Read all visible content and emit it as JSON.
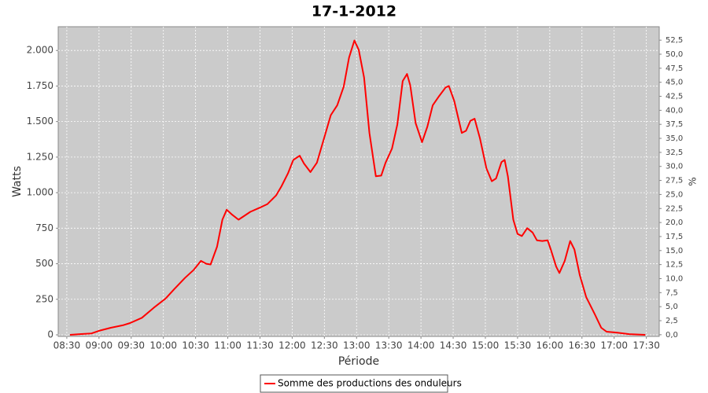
{
  "chart_data": {
    "type": "line",
    "title": "17-1-2012",
    "xlabel": "Période",
    "ylabel": "Watts",
    "y2label": "%",
    "x": [
      "08:33",
      "08:42",
      "08:53",
      "09:00",
      "09:11",
      "09:22",
      "09:29",
      "09:40",
      "09:51",
      "10:02",
      "10:10",
      "10:20",
      "10:28",
      "10:35",
      "10:40",
      "10:44",
      "10:50",
      "10:55",
      "10:59",
      "11:04",
      "11:10",
      "11:15",
      "11:21",
      "11:30",
      "11:37",
      "11:45",
      "11:50",
      "11:56",
      "12:01",
      "12:07",
      "12:11",
      "12:17",
      "12:23",
      "12:29",
      "12:36",
      "12:42",
      "12:48",
      "12:53",
      "12:58",
      "13:02",
      "13:07",
      "13:12",
      "13:18",
      "13:23",
      "13:27",
      "13:33",
      "13:38",
      "13:43",
      "13:47",
      "13:50",
      "13:55",
      "14:01",
      "14:06",
      "14:11",
      "14:17",
      "14:23",
      "14:26",
      "14:31",
      "14:38",
      "14:42",
      "14:46",
      "14:50",
      "14:55",
      "15:01",
      "15:06",
      "15:10",
      "15:15",
      "15:18",
      "15:21",
      "15:26",
      "15:30",
      "15:34",
      "15:39",
      "15:44",
      "15:48",
      "15:53",
      "15:58",
      "16:01",
      "16:06",
      "16:09",
      "16:14",
      "16:19",
      "16:23",
      "16:28",
      "16:34",
      "16:42",
      "16:48",
      "16:53",
      "17:03",
      "17:14",
      "17:29"
    ],
    "series": [
      {
        "name": "Somme des productions des onduleurs",
        "color": "#ff0000",
        "values": [
          0,
          5,
          10,
          28,
          50,
          67,
          83,
          120,
          190,
          255,
          320,
          400,
          455,
          520,
          500,
          495,
          620,
          810,
          880,
          845,
          810,
          835,
          865,
          895,
          920,
          980,
          1045,
          1135,
          1230,
          1260,
          1205,
          1145,
          1210,
          1365,
          1545,
          1615,
          1745,
          1950,
          2070,
          2005,
          1810,
          1420,
          1115,
          1120,
          1210,
          1310,
          1480,
          1785,
          1835,
          1755,
          1490,
          1355,
          1465,
          1615,
          1680,
          1740,
          1750,
          1645,
          1420,
          1435,
          1505,
          1520,
          1380,
          1170,
          1080,
          1100,
          1215,
          1230,
          1115,
          810,
          710,
          695,
          750,
          720,
          665,
          660,
          665,
          600,
          480,
          435,
          520,
          660,
          600,
          420,
          265,
          145,
          50,
          22,
          15,
          5,
          0
        ]
      }
    ],
    "xlim": [
      "08:22",
      "17:42"
    ],
    "xticks": [
      "08:30",
      "09:00",
      "09:30",
      "10:00",
      "10:30",
      "11:00",
      "11:30",
      "12:00",
      "12:30",
      "13:00",
      "13:30",
      "14:00",
      "14:30",
      "15:00",
      "15:30",
      "16:00",
      "16:30",
      "17:00",
      "17:30"
    ],
    "ylim": [
      -11,
      2167
    ],
    "yticks": [
      0,
      250,
      500,
      750,
      {
        "value": 1000,
        "label": "1.000"
      },
      {
        "value": 1250,
        "label": "1.250"
      },
      {
        "value": 1500,
        "label": "1.500"
      },
      {
        "value": 1750,
        "label": "1.750"
      },
      {
        "value": 2000,
        "label": "2.000"
      }
    ],
    "y2lim": [
      -0.3,
      54.9
    ],
    "y2ticks": [
      {
        "value": 0,
        "label": "0,0"
      },
      {
        "value": 2.5,
        "label": "2,5"
      },
      {
        "value": 5,
        "label": "5,0"
      },
      {
        "value": 7.5,
        "label": "7,5"
      },
      {
        "value": 10,
        "label": "10,0"
      },
      {
        "value": 12.5,
        "label": "12,5"
      },
      {
        "value": 15,
        "label": "15,0"
      },
      {
        "value": 17.5,
        "label": "17,5"
      },
      {
        "value": 20,
        "label": "20,0"
      },
      {
        "value": 22.5,
        "label": "22,5"
      },
      {
        "value": 25,
        "label": "25,0"
      },
      {
        "value": 27.5,
        "label": "27,5"
      },
      {
        "value": 30,
        "label": "30,0"
      },
      {
        "value": 32.5,
        "label": "32,5"
      },
      {
        "value": 35,
        "label": "35,0"
      },
      {
        "value": 37.5,
        "label": "37,5"
      },
      {
        "value": 40,
        "label": "40,0"
      },
      {
        "value": 42.5,
        "label": "42,5"
      },
      {
        "value": 45,
        "label": "45,0"
      },
      {
        "value": 47.5,
        "label": "47,5"
      },
      {
        "value": 50,
        "label": "50,0"
      },
      {
        "value": 52.5,
        "label": "52,5"
      }
    ],
    "grid": true,
    "legend": "bottom"
  }
}
